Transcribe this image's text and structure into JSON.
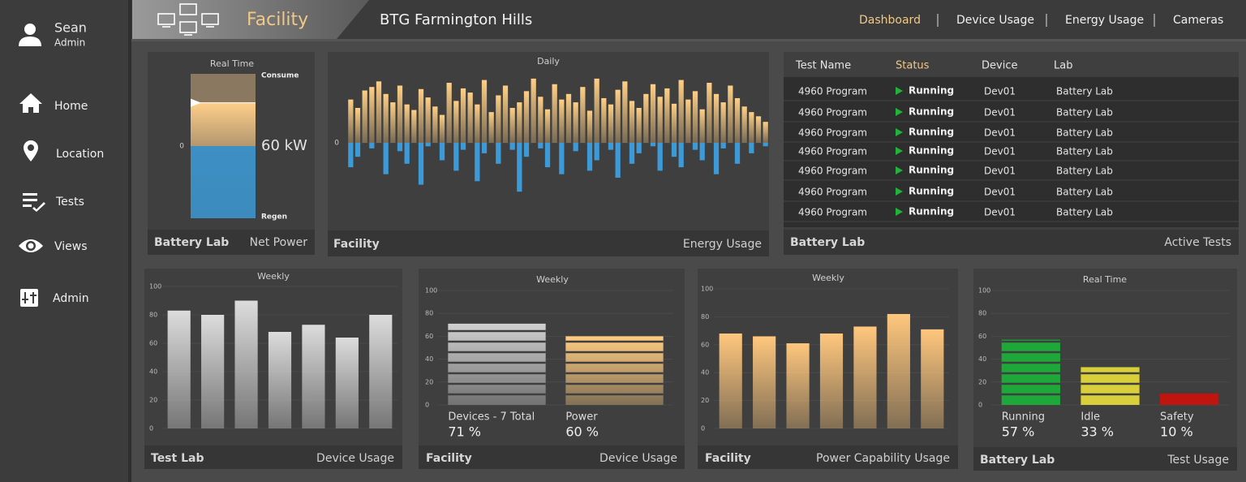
{
  "user": {
    "name": "Sean",
    "role": "Admin"
  },
  "sidebar": {
    "items": [
      "Home",
      "Location",
      "Tests",
      "Views",
      "Admin"
    ]
  },
  "header": {
    "section": "Facility",
    "site": "BTG Farmington Hills",
    "nav": [
      "Dashboard",
      "Device Usage",
      "Energy Usage",
      "Cameras"
    ]
  },
  "chart_data": [
    {
      "type": "gauge",
      "title": "Real Time",
      "top_label": "Consume",
      "bottom_label": "Regen",
      "value": 60,
      "value_label": "60 kW",
      "ylim": [
        -100,
        100
      ],
      "yticks": [
        0
      ],
      "color": "#ffcf8a",
      "negative_color": "#3d8fc4",
      "footer_left": "Battery Lab",
      "footer_right": "Net Power"
    },
    {
      "type": "diverging_bar",
      "title": "Daily",
      "ylim": [
        -100,
        100
      ],
      "yticks": [
        0
      ],
      "color": "#ffcf85",
      "negative_color": "#3d9ad8",
      "values": [
        62,
        50,
        75,
        80,
        88,
        70,
        58,
        82,
        55,
        47,
        77,
        65,
        52,
        40,
        86,
        60,
        78,
        72,
        55,
        90,
        44,
        68,
        82,
        50,
        58,
        74,
        92,
        66,
        48,
        84,
        62,
        70,
        58,
        80,
        46,
        92,
        64,
        55,
        76,
        88,
        60,
        50,
        70,
        84,
        66,
        78,
        56,
        90,
        62,
        74,
        48,
        86,
        70,
        58,
        82,
        64,
        52,
        44,
        38,
        30
      ],
      "negative_values": [
        -35,
        -20,
        0,
        -8,
        0,
        -45,
        0,
        -12,
        -30,
        0,
        -60,
        -5,
        0,
        -25,
        0,
        -40,
        -10,
        0,
        -55,
        -15,
        0,
        -30,
        0,
        -10,
        -70,
        -20,
        0,
        -8,
        -35,
        0,
        -45,
        0,
        -12,
        0,
        -40,
        -25,
        0,
        -10,
        -50,
        0,
        -30,
        -15,
        0,
        -5,
        -40,
        0,
        -20,
        -35,
        0,
        -10,
        -25,
        0,
        -45,
        -8,
        0,
        -30,
        0,
        -15,
        0,
        -5
      ],
      "footer_left": "Facility",
      "footer_right": "Energy Usage"
    },
    {
      "type": "bar",
      "title": "Weekly",
      "values": [
        83,
        80,
        90,
        68,
        73,
        64,
        80
      ],
      "color": "#dcdcdc",
      "gradient": true,
      "striped": false,
      "ylim": [
        0,
        100
      ],
      "yticks": [
        0,
        20,
        40,
        60,
        80,
        100
      ],
      "grid": true,
      "footer_left": "Test Lab",
      "footer_right": "Device Usage"
    },
    {
      "type": "bar",
      "title": "Weekly",
      "categories": [
        "Devices - 7 Total",
        "Power"
      ],
      "values": [
        71,
        60
      ],
      "value_labels": [
        "71 %",
        "60 %"
      ],
      "colors": [
        "#d0d0d0",
        "#ffcc80"
      ],
      "gradient": true,
      "striped": true,
      "ylim": [
        0,
        100
      ],
      "yticks": [
        0,
        20,
        40,
        60,
        80,
        100
      ],
      "grid": true,
      "footer_left": "Facility",
      "footer_right": "Device Usage"
    },
    {
      "type": "bar",
      "title": "Weekly",
      "values": [
        68,
        66,
        61,
        68,
        73,
        82,
        71
      ],
      "color": "#ffc77d",
      "gradient": true,
      "striped": false,
      "ylim": [
        0,
        100
      ],
      "yticks": [
        0,
        20,
        40,
        60,
        80,
        100
      ],
      "grid": true,
      "footer_left": "Facility",
      "footer_right": "Power Capability Usage"
    },
    {
      "type": "bar",
      "title": "Real Time",
      "categories": [
        "Running",
        "Idle",
        "Safety"
      ],
      "values": [
        57,
        33,
        10
      ],
      "value_labels": [
        "57 %",
        "33 %",
        "10 %"
      ],
      "colors": [
        "#1fa83a",
        "#d9cf3a",
        "#c0140f"
      ],
      "gradient": false,
      "striped": true,
      "ylim": [
        0,
        100
      ],
      "yticks": [
        0,
        20,
        40,
        60,
        80,
        100
      ],
      "grid": true,
      "footer_left": "Battery Lab",
      "footer_right": "Test Usage"
    }
  ],
  "tests_panel": {
    "columns": [
      "Test Name",
      "Status",
      "Device",
      "Lab"
    ],
    "rows": [
      [
        "4960 Program",
        "Running",
        "Dev01",
        "Battery Lab"
      ],
      [
        "4960 Program",
        "Running",
        "Dev01",
        "Battery Lab"
      ],
      [
        "4960 Program",
        "Running",
        "Dev01",
        "Battery Lab"
      ],
      [
        "4960 Program",
        "Running",
        "Dev01",
        "Battery Lab"
      ],
      [
        "4960 Program",
        "Running",
        "Dev01",
        "Battery Lab"
      ],
      [
        "4960 Program",
        "Running",
        "Dev01",
        "Battery Lab"
      ],
      [
        "4960 Program",
        "Running",
        "Dev01",
        "Battery Lab"
      ]
    ],
    "footer_left": "Battery Lab",
    "footer_right": "Active Tests"
  }
}
